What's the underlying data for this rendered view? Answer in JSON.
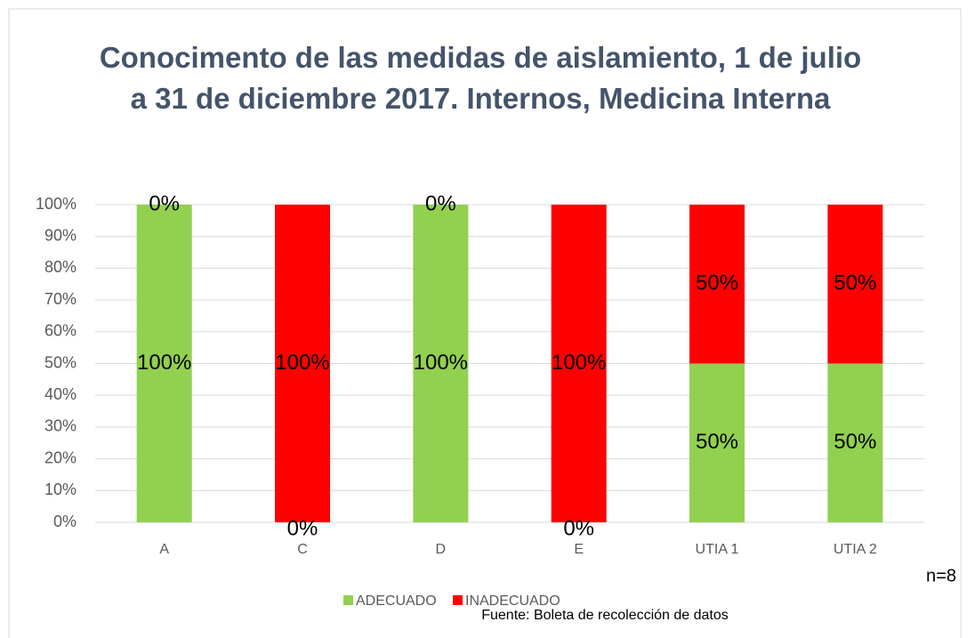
{
  "chart_data": {
    "type": "stacked_bar",
    "title": "Conocimento de las medidas de aislamiento, 1 de julio a 31 de diciembre 2017. Internos, Medicina Interna",
    "categories": [
      "A",
      "C",
      "D",
      "E",
      "UTIA 1",
      "UTIA 2"
    ],
    "series": [
      {
        "name": "ADECUADO",
        "color": "#92d050",
        "values": [
          100,
          0,
          100,
          0,
          50,
          50
        ],
        "value_labels": [
          "100%",
          "0%",
          "100%",
          "0%",
          "50%",
          "50%"
        ]
      },
      {
        "name": "INADECUADO",
        "color": "#ff0000",
        "values": [
          0,
          100,
          0,
          100,
          50,
          50
        ],
        "value_labels": [
          "0%",
          "100%",
          "0%",
          "100%",
          "50%",
          "50%"
        ]
      }
    ],
    "ylim": [
      0,
      100
    ],
    "yticks": [
      {
        "value": 0,
        "label": "0%"
      },
      {
        "value": 10,
        "label": "10%"
      },
      {
        "value": 20,
        "label": "20%"
      },
      {
        "value": 30,
        "label": "30%"
      },
      {
        "value": 40,
        "label": "40%"
      },
      {
        "value": 50,
        "label": "50%"
      },
      {
        "value": 60,
        "label": "60%"
      },
      {
        "value": 70,
        "label": "70%"
      },
      {
        "value": 80,
        "label": "80%"
      },
      {
        "value": 90,
        "label": "90%"
      },
      {
        "value": 100,
        "label": "100%"
      }
    ],
    "grid": true,
    "legend": "bottom",
    "annotations": [
      "n=8",
      "Fuente: Boleta de recolección de datos"
    ]
  }
}
